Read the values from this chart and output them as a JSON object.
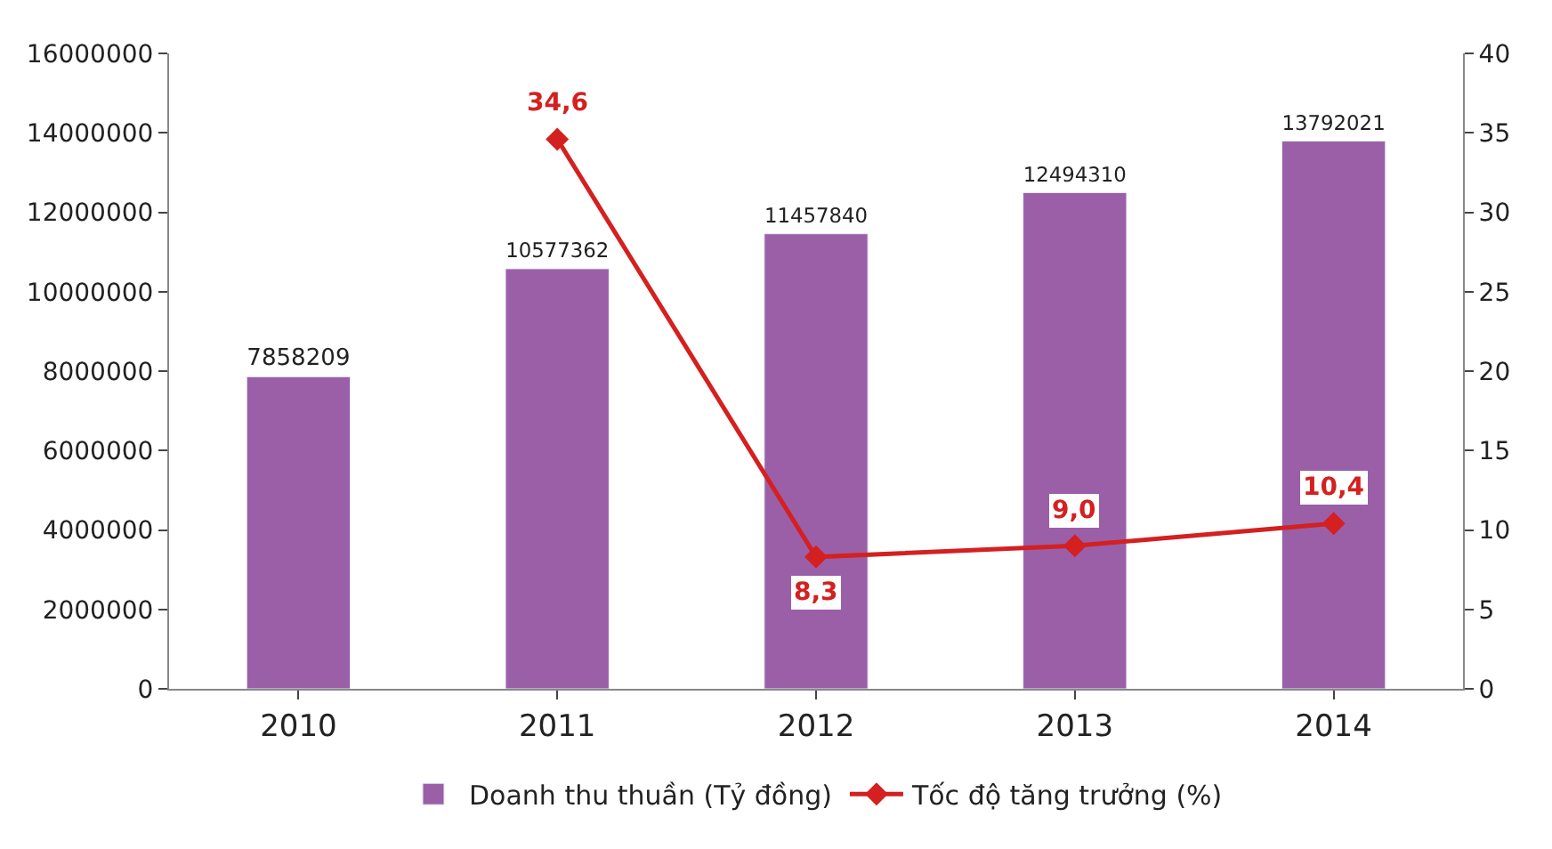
{
  "chart_data": {
    "type": "bar",
    "categories": [
      "2010",
      "2011",
      "2012",
      "2013",
      "2014"
    ],
    "series": [
      {
        "name": "Doanh thu thuần (Tỷ đồng)",
        "color": "#9b5fa8",
        "values": [
          7858209,
          10577362,
          11457840,
          12494310,
          13792021
        ],
        "value_labels": [
          "7858209",
          "10577362",
          "11457840",
          "12494310",
          "13792021"
        ]
      },
      {
        "name": "Tốc độ tăng trưởng (%)",
        "type": "line",
        "axis": "y2",
        "color": "#d42020",
        "marker": "diamond",
        "values": [
          null,
          34.6,
          8.3,
          9.0,
          10.4
        ],
        "value_labels": [
          null,
          "34,6",
          "8,3",
          "9,0",
          "10,4"
        ]
      }
    ],
    "ylim": [
      0,
      16000000
    ],
    "yticks": [
      0,
      2000000,
      4000000,
      6000000,
      8000000,
      10000000,
      12000000,
      14000000,
      16000000
    ],
    "y2lim": [
      0,
      40
    ],
    "y2ticks": [
      0,
      5,
      10,
      15,
      20,
      25,
      30,
      35,
      40
    ],
    "legend": "bottom"
  }
}
